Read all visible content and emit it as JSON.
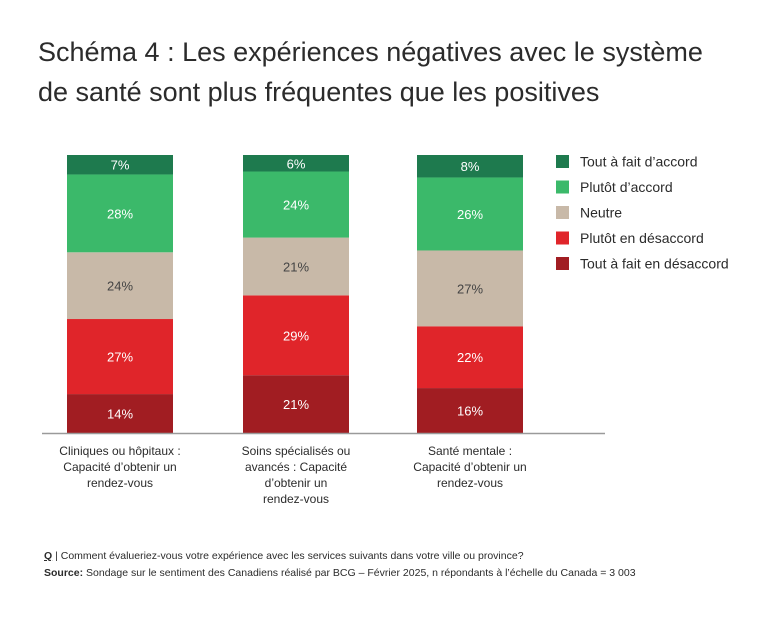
{
  "title_line1": "Schéma 4 : Les expériences négatives avec le système",
  "title_line2": "de santé sont plus fréquentes que les positives",
  "chart_data": {
    "type": "bar",
    "stacked": true,
    "title": "Schéma 4 : Les expériences négatives avec le système de santé sont plus fréquentes que les positives",
    "categories": [
      [
        "Cliniques ou hôpitaux :",
        "Capacité d’obtenir un",
        "rendez-vous"
      ],
      [
        "Soins spécialisés ou",
        "avancés : Capacité",
        "d’obtenir un",
        "rendez-vous"
      ],
      [
        "Santé mentale :",
        "Capacité d’obtenir un",
        "rendez-vous"
      ]
    ],
    "series": [
      {
        "name": "Tout à fait d’accord",
        "color": "#1e7a4e",
        "values": [
          7,
          6,
          8
        ]
      },
      {
        "name": "Plutôt d’accord",
        "color": "#3bb96a",
        "values": [
          28,
          24,
          26
        ]
      },
      {
        "name": "Neutre",
        "color": "#c8b9a8",
        "values": [
          24,
          21,
          27
        ]
      },
      {
        "name": "Plutôt en désaccord",
        "color": "#e0252a",
        "values": [
          27,
          29,
          22
        ]
      },
      {
        "name": "Tout à fait en désaccord",
        "color": "#a11d22",
        "values": [
          14,
          21,
          16
        ]
      }
    ],
    "value_suffix": "%",
    "legend_position": "right",
    "grid": false
  },
  "footer": {
    "q_label": "Q",
    "question": " | Comment évalueriez-vous votre expérience avec les services suivants dans votre ville ou province?",
    "source_label": "Source:",
    "source_text": " Sondage sur le sentiment des Canadiens réalisé par BCG – Février 2025, n répondants à l’échelle du Canada = 3 003"
  }
}
